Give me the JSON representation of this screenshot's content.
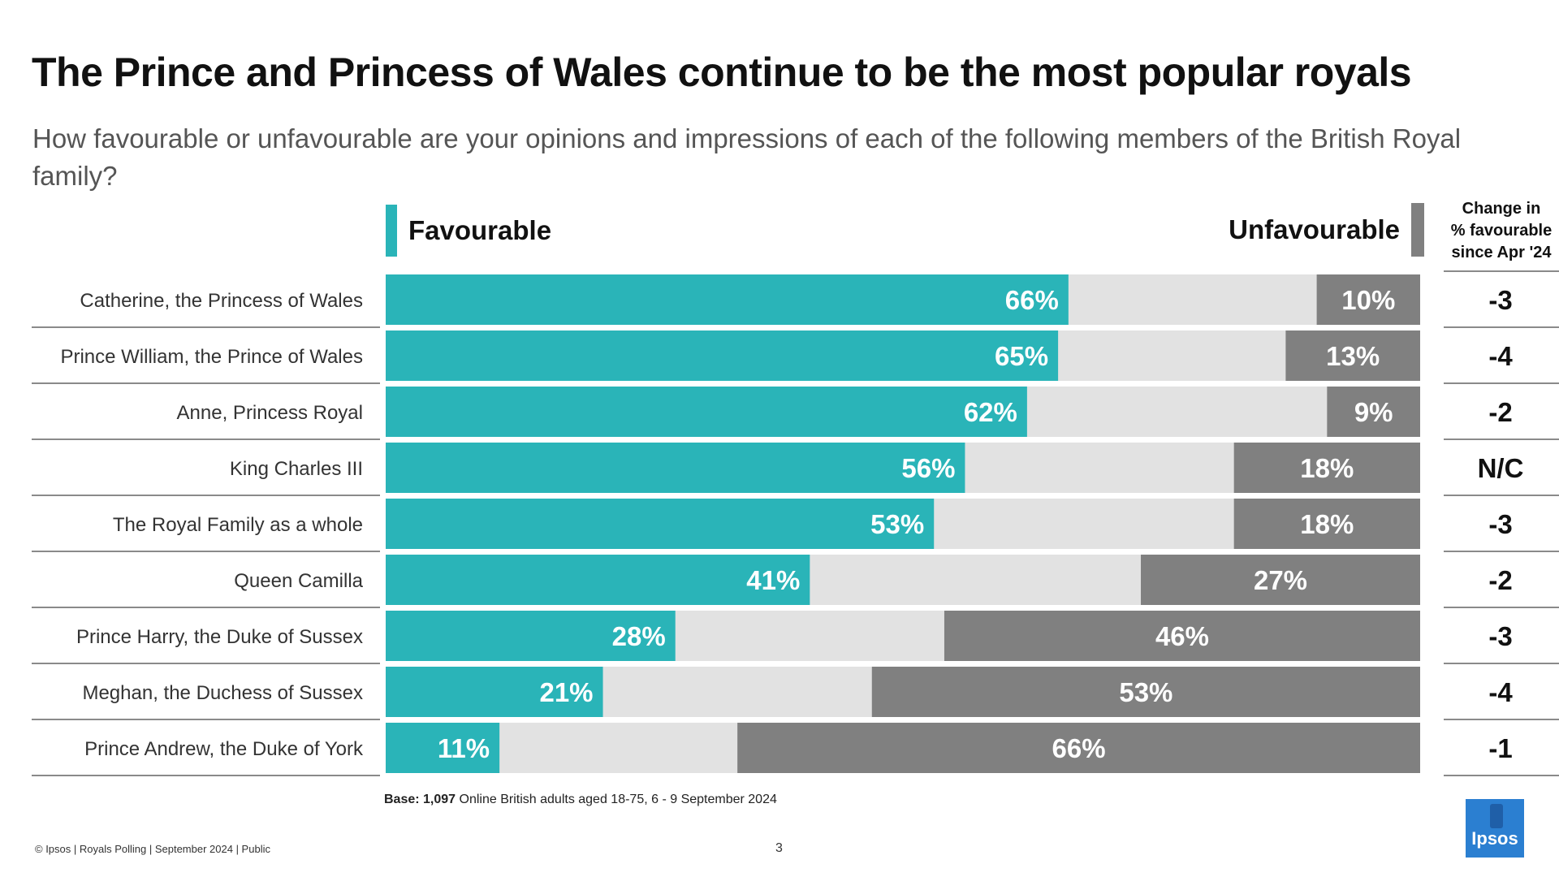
{
  "title": "The Prince and Princess of Wales continue to be the most popular royals",
  "subtitle": "How favourable or unfavourable are your opinions and impressions of each of the following members of the British Royal family?",
  "legend": {
    "favourable": "Favourable",
    "unfavourable": "Unfavourable"
  },
  "change_header": {
    "line1": "Change in",
    "line2": "% favourable",
    "line3": "since Apr '24"
  },
  "colors": {
    "favourable": "#2ab4b8",
    "neutral": "#e2e2e2",
    "unfavourable": "#808080",
    "label_text": "#ffffff"
  },
  "chart_data": {
    "type": "bar",
    "orientation": "horizontal",
    "stacked": true,
    "categories": [
      "Catherine, the Princess of Wales",
      "Prince William, the Prince of Wales",
      "Anne, Princess Royal",
      "King Charles III",
      "The Royal Family as a whole",
      "Queen Camilla",
      "Prince Harry, the Duke of Sussex",
      "Meghan, the Duchess of Sussex",
      "Prince Andrew, the Duke of York"
    ],
    "series": [
      {
        "name": "Favourable",
        "values": [
          66,
          65,
          62,
          56,
          53,
          41,
          28,
          21,
          11
        ]
      },
      {
        "name": "Unfavourable",
        "values": [
          10,
          13,
          9,
          18,
          18,
          27,
          46,
          53,
          66
        ]
      }
    ],
    "change": [
      "-3",
      "-4",
      "-2",
      "N/C",
      "-3",
      "-2",
      "-3",
      "-4",
      "-1"
    ],
    "xlim": [
      0,
      100
    ],
    "value_suffix": "%"
  },
  "base_note": {
    "bold": "Base:",
    "bold_n": "1,097",
    "text": " Online British adults aged 18-75, 6 - 9 September 2024"
  },
  "footer": {
    "left": "© Ipsos | Royals Polling | September 2024 | Public",
    "page": "3"
  },
  "logo_text": "Ipsos"
}
